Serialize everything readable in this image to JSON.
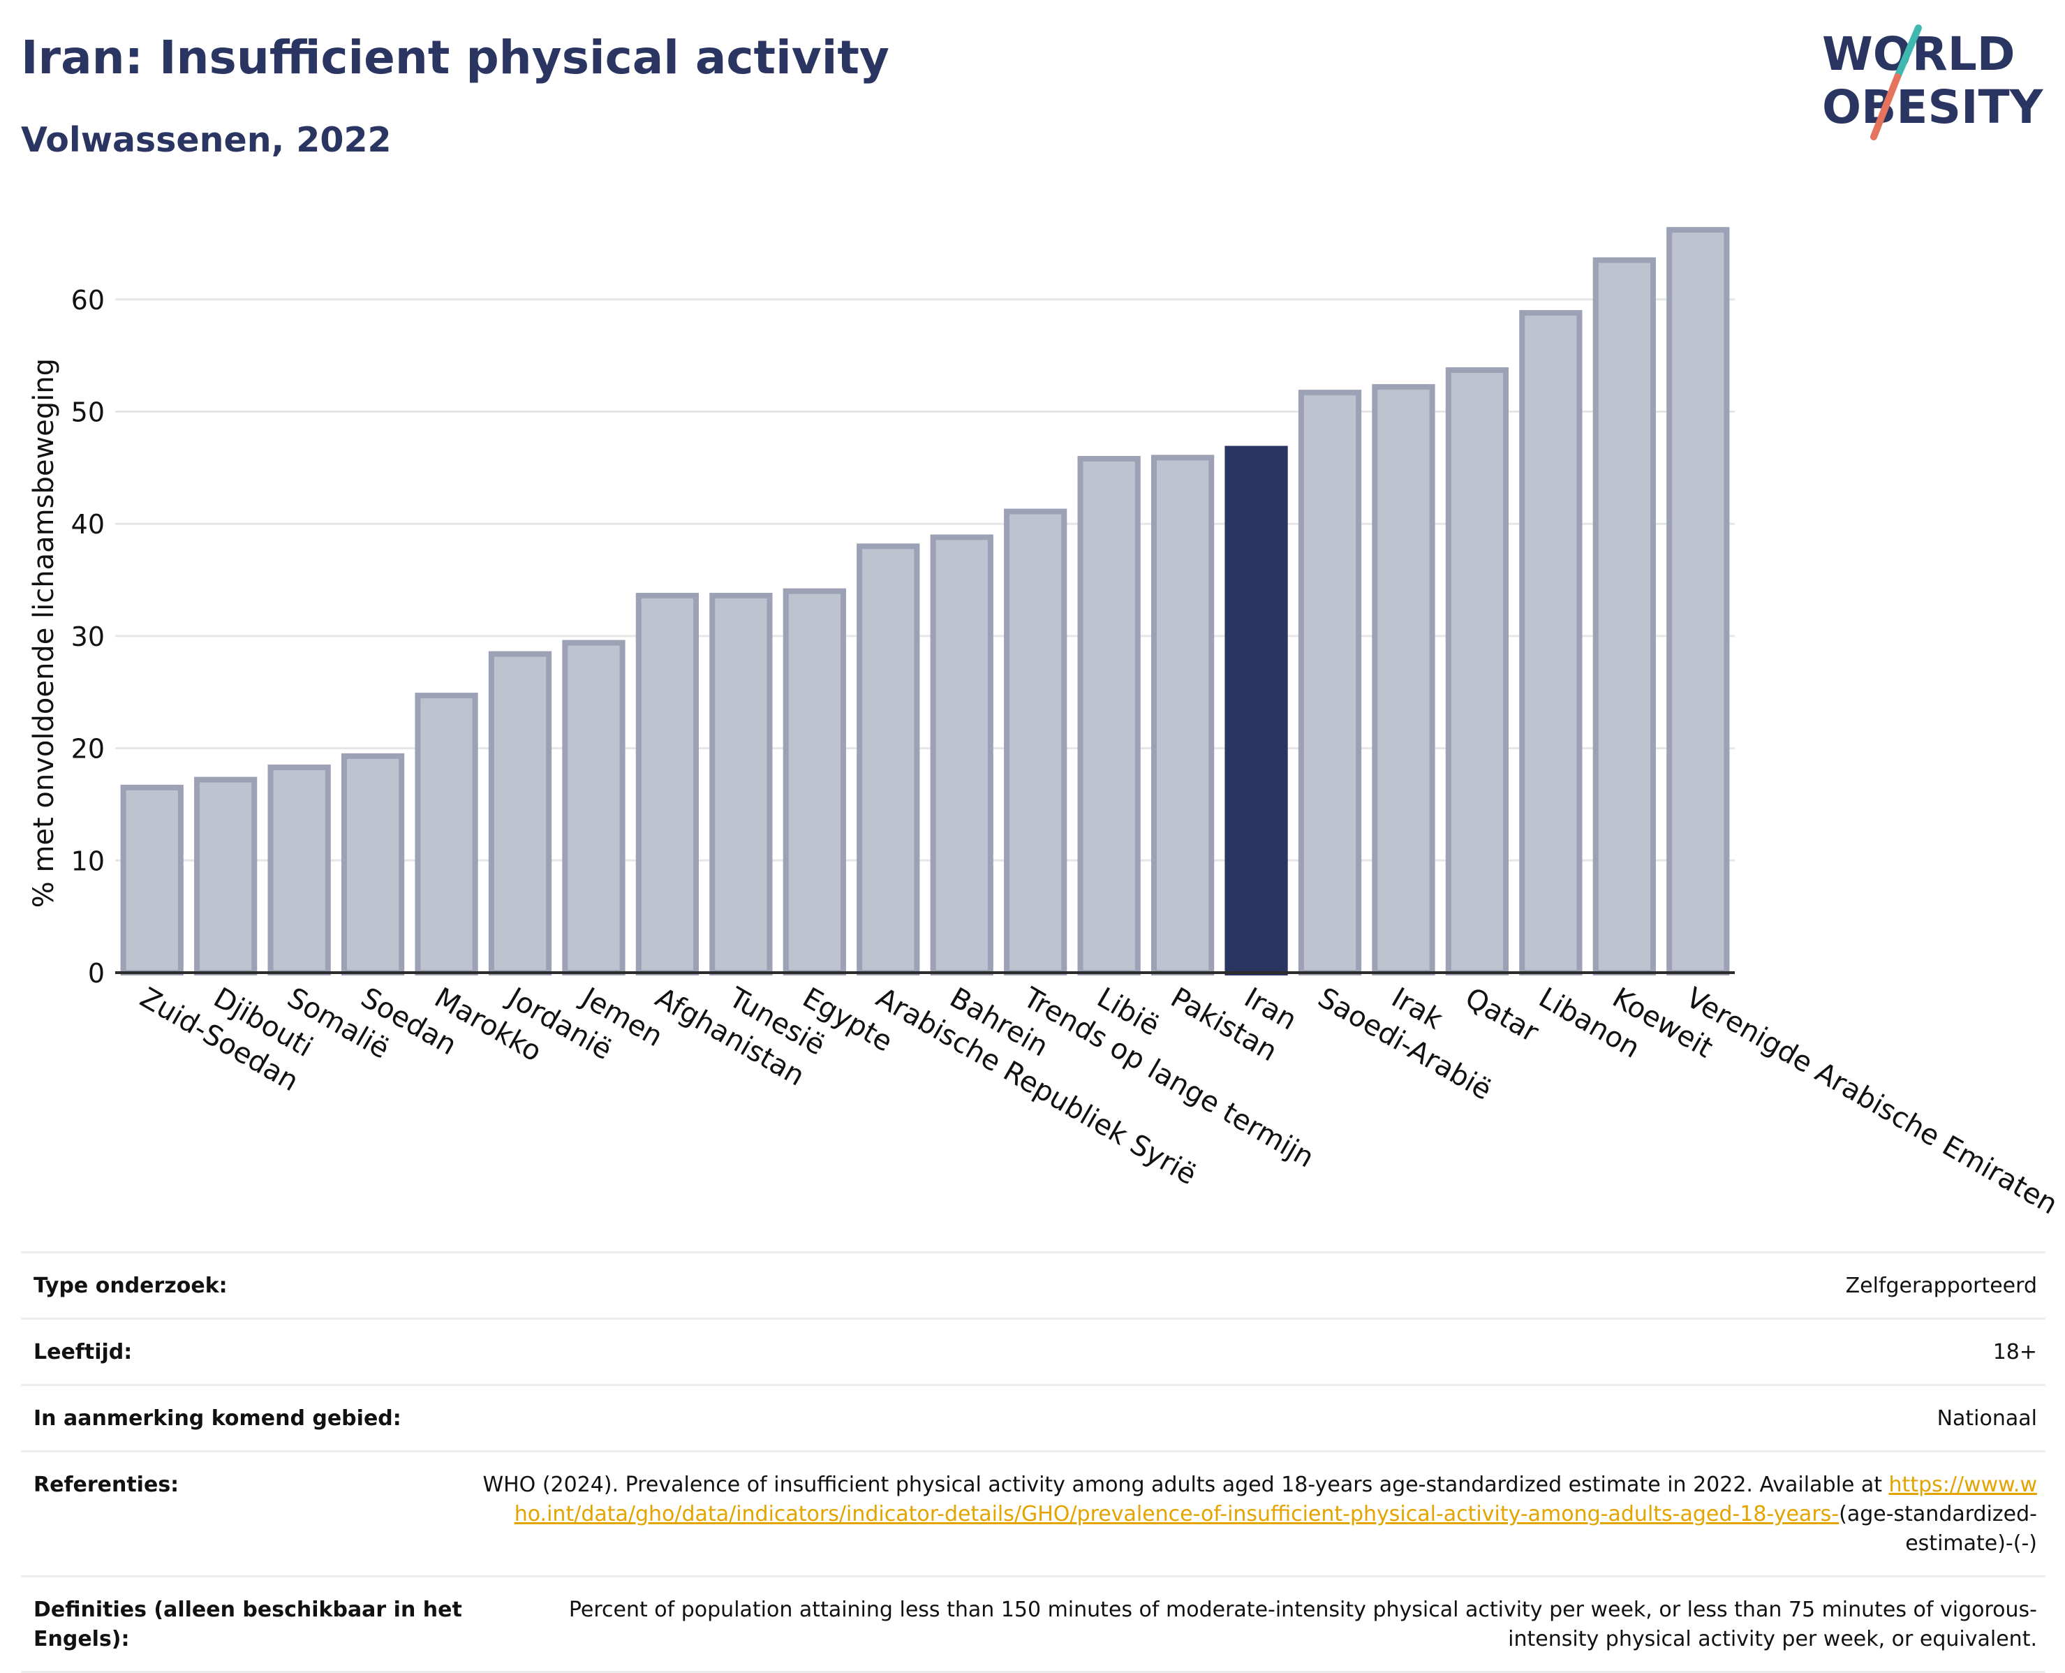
{
  "header": {
    "title": "Iran: Insufficient physical activity",
    "subtitle": "Volwassenen, 2022",
    "logo_line1": "WORLD",
    "logo_line2": "OBESITY"
  },
  "colors": {
    "bar": "#bfc2cf",
    "bar_stroke": "#9ca1b6",
    "highlight": "#2b3561",
    "grid": "#e6e6e6",
    "link": "#e3a400"
  },
  "chart_data": {
    "type": "bar",
    "title": "Iran: Insufficient physical activity",
    "subtitle": "Volwassenen, 2022",
    "xlabel": "",
    "ylabel": "% met onvoldoende lichaamsbeweging",
    "ylim": [
      0,
      68
    ],
    "yticks": [
      0,
      10,
      20,
      30,
      40,
      50,
      60
    ],
    "grid": true,
    "highlight": "Iran",
    "categories": [
      "Zuid-Soedan",
      "Djibouti",
      "Somalië",
      "Soedan",
      "Marokko",
      "Jordanië",
      "Jemen",
      "Afghanistan",
      "Tunesië",
      "Egypte",
      "Arabische Republiek Syrië",
      "Bahrein",
      "Trends op lange termijn",
      "Libië",
      "Pakistan",
      "Iran",
      "Saoedi-Arabië",
      "Irak",
      "Qatar",
      "Libanon",
      "Koeweit",
      "Verenigde Arabische Emiraten"
    ],
    "values": [
      16.5,
      17.2,
      18.3,
      19.3,
      24.7,
      28.4,
      29.4,
      33.6,
      33.6,
      34.0,
      38.0,
      38.8,
      41.1,
      45.8,
      45.9,
      46.7,
      51.7,
      52.2,
      53.7,
      58.8,
      63.5,
      66.2
    ]
  },
  "info": {
    "rows": [
      {
        "key": "Type onderzoek:",
        "value": "Zelfgerapporteerd"
      },
      {
        "key": "Leeftijd:",
        "value": "18+"
      },
      {
        "key": "In aanmerking komend gebied:",
        "value": "Nationaal"
      }
    ],
    "references_key": "Referenties:",
    "references_text": "WHO (2024). Prevalence of insufficient physical activity among adults aged 18-years age-standardized estimate in 2022. Available at",
    "references_link": "https://www.who.int/data/gho/data/indicators/indicator-details/GHO/prevalence-of-insufficient-physical-activity-among-adults-aged-18-years-",
    "references_suffix": "(age-standardized-estimate)-(-)",
    "definitions_key": "Definities (alleen beschikbaar in het Engels):",
    "definitions_value": "Percent of population attaining less than 150 minutes of moderate-intensity physical activity per week, or less than 75 minutes of vigorous-intensity physical activity per week, or equivalent."
  }
}
